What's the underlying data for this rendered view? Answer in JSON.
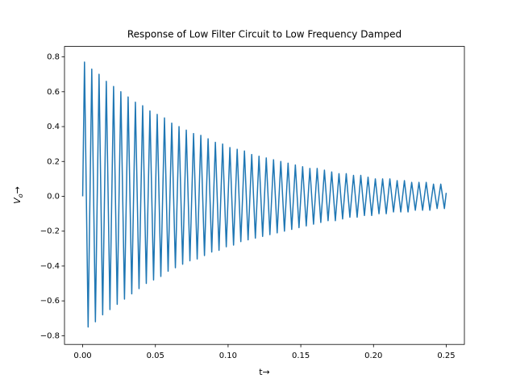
{
  "chart_data": {
    "type": "line",
    "title": "Response of Low Filter Circuit to Low Frequency Damped",
    "xlabel": "t→",
    "ylabel": [
      "V",
      "o",
      "→"
    ],
    "xlim": [
      -0.0125,
      0.2625
    ],
    "ylim": [
      -0.85,
      0.86
    ],
    "xticks": [
      {
        "value": 0,
        "label": "0.00"
      },
      {
        "value": 0.05,
        "label": "0.05"
      },
      {
        "value": 0.1,
        "label": "0.10"
      },
      {
        "value": 0.15,
        "label": "0.15"
      },
      {
        "value": 0.2,
        "label": "0.20"
      },
      {
        "value": 0.25,
        "label": "0.25"
      }
    ],
    "yticks": [
      {
        "value": -0.8,
        "label": "−0.8"
      },
      {
        "value": -0.6,
        "label": "−0.6"
      },
      {
        "value": -0.4,
        "label": "−0.4"
      },
      {
        "value": -0.2,
        "label": "−0.2"
      },
      {
        "value": 0,
        "label": "0.0"
      },
      {
        "value": 0.2,
        "label": "0.2"
      },
      {
        "value": 0.4,
        "label": "0.4"
      },
      {
        "value": 0.6,
        "label": "0.6"
      },
      {
        "value": 0.8,
        "label": "0.8"
      }
    ],
    "x": [
      0,
      0.00125,
      0.00375,
      0.00625,
      0.00875,
      0.01125,
      0.01375,
      0.01625,
      0.01875,
      0.02125,
      0.02375,
      0.02625,
      0.02875,
      0.03125,
      0.03375,
      0.03625,
      0.03875,
      0.04125,
      0.04375,
      0.04625,
      0.04875,
      0.05125,
      0.05375,
      0.05625,
      0.05875,
      0.06125,
      0.06375,
      0.06625,
      0.06875,
      0.07125,
      0.07375,
      0.07625,
      0.07875,
      0.08125,
      0.08375,
      0.08625,
      0.08875,
      0.09125,
      0.09375,
      0.09625,
      0.09875,
      0.10125,
      0.10375,
      0.10625,
      0.10875,
      0.11125,
      0.11375,
      0.11625,
      0.11875,
      0.12125,
      0.12375,
      0.12625,
      0.12875,
      0.13125,
      0.13375,
      0.13625,
      0.13875,
      0.14125,
      0.14375,
      0.14625,
      0.14875,
      0.15125,
      0.15375,
      0.15625,
      0.15875,
      0.16125,
      0.16375,
      0.16625,
      0.16875,
      0.17125,
      0.17375,
      0.17625,
      0.17875,
      0.18125,
      0.18375,
      0.18625,
      0.18875,
      0.19125,
      0.19375,
      0.19625,
      0.19875,
      0.20125,
      0.20375,
      0.20625,
      0.20875,
      0.21125,
      0.21375,
      0.21625,
      0.21875,
      0.22125,
      0.22375,
      0.22625,
      0.22875,
      0.23125,
      0.23375,
      0.23625,
      0.23875,
      0.24125,
      0.24375,
      0.24625,
      0.24875,
      0.25
    ],
    "series": [
      {
        "color": "#1f77b4",
        "values": [
          0,
          0.77,
          -0.75,
          0.73,
          -0.72,
          0.7,
          -0.68,
          0.66,
          -0.65,
          0.63,
          -0.62,
          0.6,
          -0.59,
          0.57,
          -0.56,
          0.54,
          -0.53,
          0.52,
          -0.5,
          0.49,
          -0.48,
          0.47,
          -0.46,
          0.45,
          -0.43,
          0.42,
          -0.41,
          0.4,
          -0.39,
          0.38,
          -0.37,
          0.36,
          -0.36,
          0.35,
          -0.34,
          0.33,
          -0.32,
          0.31,
          -0.31,
          0.3,
          -0.29,
          0.28,
          -0.28,
          0.27,
          -0.26,
          0.26,
          -0.25,
          0.24,
          -0.24,
          0.23,
          -0.23,
          0.22,
          -0.22,
          0.21,
          -0.21,
          0.2,
          -0.2,
          0.19,
          -0.19,
          0.18,
          -0.18,
          0.17,
          -0.17,
          0.16,
          -0.16,
          0.16,
          -0.15,
          0.15,
          -0.14,
          0.14,
          -0.14,
          0.13,
          -0.13,
          0.13,
          -0.12,
          0.12,
          -0.12,
          0.12,
          -0.11,
          0.11,
          -0.11,
          0.1,
          -0.1,
          0.1,
          -0.1,
          0.1,
          -0.09,
          0.09,
          -0.09,
          0.09,
          -0.09,
          0.08,
          -0.08,
          0.08,
          -0.08,
          0.08,
          -0.08,
          0.07,
          -0.07,
          0.07,
          -0.07,
          0.02
        ]
      }
    ]
  }
}
